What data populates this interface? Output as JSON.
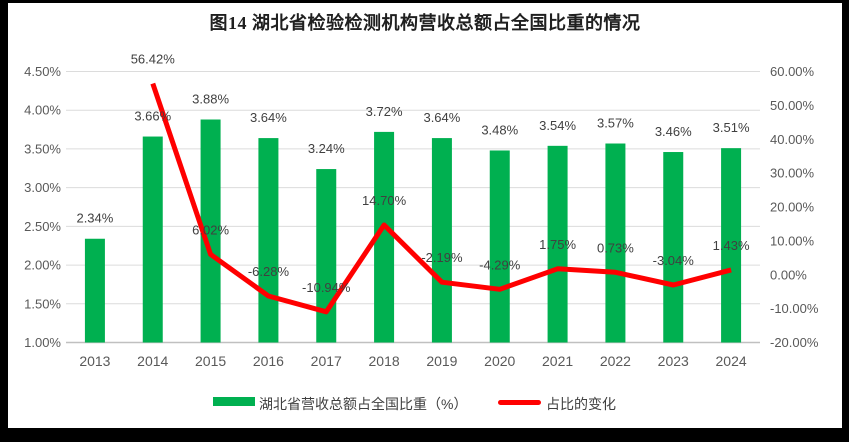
{
  "frame": {
    "background": "#000000",
    "canvas_background": "#FFFFFF"
  },
  "chart_data": {
    "type": "combo",
    "title": "图14 湖北省检验检测机构营收总额占全国比重的情况",
    "categories": [
      "2013",
      "2014",
      "2015",
      "2016",
      "2017",
      "2018",
      "2019",
      "2020",
      "2021",
      "2022",
      "2023",
      "2024"
    ],
    "series": [
      {
        "name": "湖北省营收总额占全国比重（%）",
        "type": "bar",
        "axis": "left",
        "color": "#00B050",
        "values": [
          2.34,
          3.66,
          3.88,
          3.64,
          3.24,
          3.72,
          3.64,
          3.48,
          3.54,
          3.57,
          3.46,
          3.51
        ],
        "data_labels": [
          "2.34%",
          "3.66%",
          "3.88%",
          "3.64%",
          "3.24%",
          "3.72%",
          "3.64%",
          "3.48%",
          "3.54%",
          "3.57%",
          "3.46%",
          "3.51%"
        ]
      },
      {
        "name": "占比的变化",
        "type": "line",
        "axis": "right",
        "color": "#FF0000",
        "values": [
          null,
          56.42,
          6.02,
          -6.28,
          -10.94,
          14.7,
          -2.19,
          -4.29,
          1.75,
          0.73,
          -3.04,
          1.43
        ],
        "data_labels": [
          null,
          "56.42%",
          "6.02%",
          "-6.28%",
          "-10.94%",
          "14.70%",
          "-2.19%",
          "-4.29%",
          "1.75%",
          "0.73%",
          "-3.04%",
          "1.43%"
        ]
      }
    ],
    "left_axis": {
      "min": 1.0,
      "max": 4.5,
      "step": 0.5,
      "tick_labels": [
        "4.50%",
        "4.00%",
        "3.50%",
        "3.00%",
        "2.50%",
        "2.00%",
        "1.50%",
        "1.00%"
      ]
    },
    "right_axis": {
      "min": -20,
      "max": 60,
      "step": 10,
      "tick_labels": [
        "60.00%",
        "50.00%",
        "40.00%",
        "30.00%",
        "20.00%",
        "10.00%",
        "0.00%",
        "-10.00%",
        "-20.00%"
      ]
    },
    "grid": true,
    "legend_position": "bottom"
  },
  "style": {
    "grid_color": "#DCDCDC",
    "axis_line_color": "#C0C0C0",
    "tick_text_color": "#595959",
    "data_label_color": "#404040",
    "title_color": "#1F1F1F",
    "legend_text_color": "#3F3F3F"
  }
}
